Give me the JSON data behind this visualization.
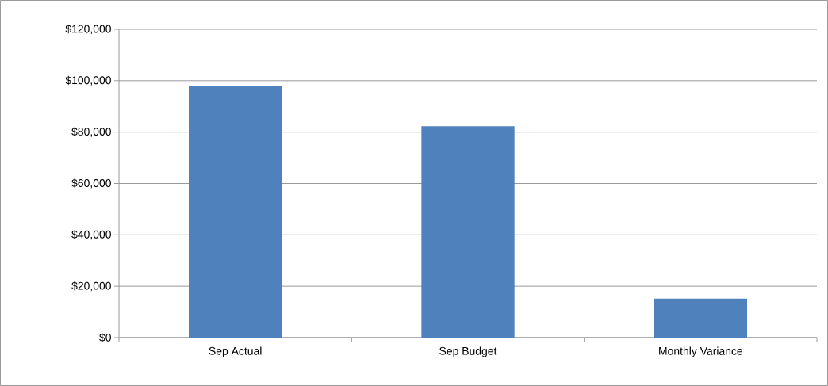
{
  "chart_data": {
    "type": "bar",
    "categories": [
      "Sep Actual",
      "Sep Budget",
      "Monthly Variance"
    ],
    "values": [
      97900,
      82300,
      15200
    ],
    "color": "#4f81bd",
    "ylim": [
      0,
      120000
    ],
    "yticks": [
      {
        "value": 0,
        "label": "$0"
      },
      {
        "value": 20000,
        "label": "$20,000"
      },
      {
        "value": 40000,
        "label": "$40,000"
      },
      {
        "value": 60000,
        "label": "$60,000"
      },
      {
        "value": 80000,
        "label": "$80,000"
      },
      {
        "value": 100000,
        "label": "$100,000"
      },
      {
        "value": 120000,
        "label": "$120,000"
      }
    ],
    "grid": "y"
  }
}
